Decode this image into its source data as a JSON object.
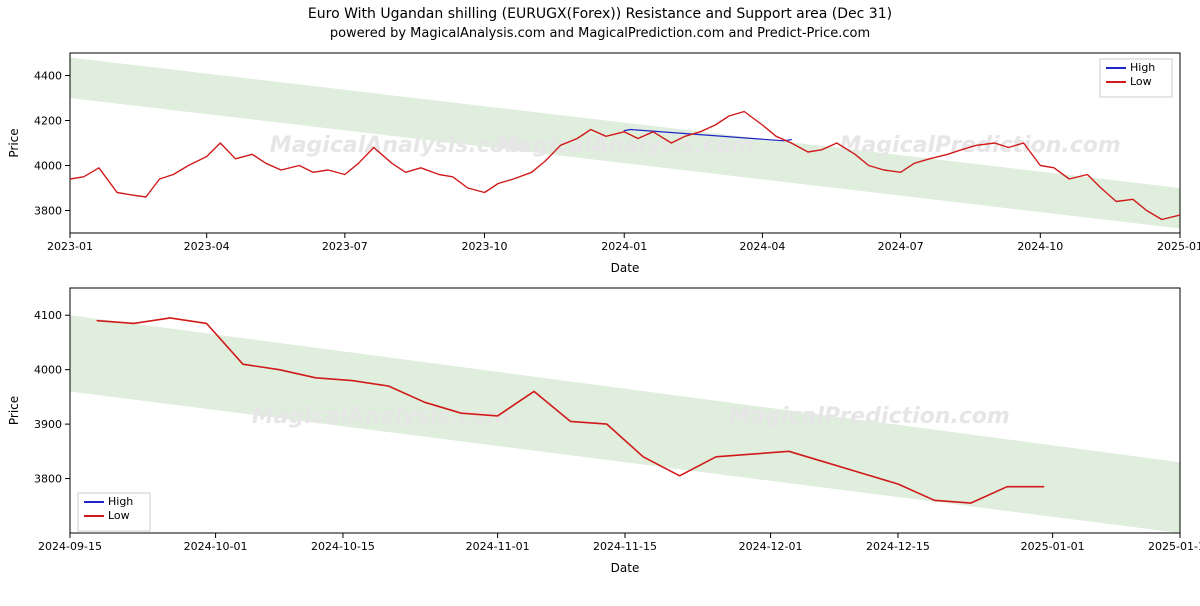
{
  "header": {
    "title": "Euro With Ugandan shilling (EURUGX(Forex)) Resistance and Support area (Dec 31)",
    "subtitle": "powered by MagicalAnalysis.com and MagicalPrediction.com and Predict-Price.com"
  },
  "watermarks": {
    "text1": "MagicalAnalysis.com",
    "text2": "MagicalPrediction.com",
    "color": "#e6e6e6",
    "fontsize": 22
  },
  "legend": {
    "items": [
      {
        "label": "High",
        "color": "#1f24c9"
      },
      {
        "label": "Low",
        "color": "#d11a1a"
      }
    ],
    "box_stroke": "#cccccc",
    "box_fill": "#ffffff"
  },
  "chart_top": {
    "type": "line",
    "xlabel": "Date",
    "ylabel": "Price",
    "background_color": "#ffffff",
    "axis_color": "#000000",
    "label_fontsize": 12,
    "tick_fontsize": 11,
    "ylim": [
      3700,
      4500
    ],
    "yticks": [
      3800,
      4000,
      4200,
      4400
    ],
    "xticks": [
      "2023-01",
      "2023-04",
      "2023-07",
      "2023-10",
      "2024-01",
      "2024-04",
      "2024-07",
      "2024-10",
      "2025-01"
    ],
    "band": {
      "color": "#dfeedd",
      "opacity": 1,
      "top_left_y": 4480,
      "top_right_y": 3900,
      "bottom_left_y": 4300,
      "bottom_right_y": 3720
    },
    "series": {
      "low": {
        "color": "#d11a1a",
        "line_width": 1.4,
        "x": [
          "2023-01-01",
          "2023-01-10",
          "2023-01-20",
          "2023-02-01",
          "2023-02-10",
          "2023-02-20",
          "2023-03-01",
          "2023-03-10",
          "2023-03-20",
          "2023-04-01",
          "2023-04-10",
          "2023-04-20",
          "2023-05-01",
          "2023-05-10",
          "2023-05-20",
          "2023-06-01",
          "2023-06-10",
          "2023-06-20",
          "2023-07-01",
          "2023-07-10",
          "2023-07-20",
          "2023-08-01",
          "2023-08-10",
          "2023-08-20",
          "2023-09-01",
          "2023-09-10",
          "2023-09-20",
          "2023-10-01",
          "2023-10-10",
          "2023-10-20",
          "2023-11-01",
          "2023-11-10",
          "2023-11-20",
          "2023-12-01",
          "2023-12-10",
          "2023-12-20",
          "2024-01-01",
          "2024-01-10",
          "2024-01-20",
          "2024-02-01",
          "2024-02-10",
          "2024-02-20",
          "2024-03-01",
          "2024-03-10",
          "2024-03-20",
          "2024-04-01",
          "2024-04-10",
          "2024-04-20",
          "2024-05-01",
          "2024-05-10",
          "2024-05-20",
          "2024-06-01",
          "2024-06-10",
          "2024-06-20",
          "2024-07-01",
          "2024-07-10",
          "2024-07-20",
          "2024-08-01",
          "2024-08-10",
          "2024-08-20",
          "2024-09-01",
          "2024-09-10",
          "2024-09-20",
          "2024-10-01",
          "2024-10-10",
          "2024-10-20",
          "2024-11-01",
          "2024-11-10",
          "2024-11-20",
          "2024-12-01",
          "2024-12-10",
          "2024-12-20",
          "2025-01-01"
        ],
        "y": [
          3940,
          3950,
          3990,
          3880,
          3870,
          3860,
          3940,
          3960,
          4000,
          4040,
          4100,
          4030,
          4050,
          4010,
          3980,
          4000,
          3970,
          3980,
          3960,
          4010,
          4080,
          4010,
          3970,
          3990,
          3960,
          3950,
          3900,
          3880,
          3920,
          3940,
          3970,
          4020,
          4090,
          4120,
          4160,
          4130,
          4150,
          4120,
          4150,
          4100,
          4130,
          4150,
          4180,
          4220,
          4240,
          4180,
          4130,
          4100,
          4060,
          4070,
          4100,
          4050,
          4000,
          3980,
          3970,
          4010,
          4030,
          4050,
          4070,
          4090,
          4100,
          4080,
          4100,
          4000,
          3990,
          3940,
          3960,
          3900,
          3840,
          3850,
          3800,
          3760,
          3780
        ]
      },
      "high": {
        "color": "#1f24c9",
        "line_width": 1.2,
        "x": [
          "2024-01-01",
          "2024-01-05",
          "2024-04-15",
          "2024-04-20"
        ],
        "y": [
          4155,
          4160,
          4110,
          4115
        ]
      }
    },
    "legend_position": "top-right"
  },
  "chart_bottom": {
    "type": "line",
    "xlabel": "Date",
    "ylabel": "Price",
    "background_color": "#ffffff",
    "axis_color": "#000000",
    "label_fontsize": 12,
    "tick_fontsize": 11,
    "ylim": [
      3700,
      4150
    ],
    "yticks": [
      3800,
      3900,
      4000,
      4100
    ],
    "xticks": [
      "2024-09-15",
      "2024-10-01",
      "2024-10-15",
      "2024-11-01",
      "2024-11-15",
      "2024-12-01",
      "2024-12-15",
      "2025-01-01",
      "2025-01-15"
    ],
    "band": {
      "color": "#dfeedd",
      "opacity": 1,
      "top_left_y": 4100,
      "top_right_y": 3830,
      "bottom_left_y": 3960,
      "bottom_right_y": 3700
    },
    "series": {
      "low": {
        "color": "#d11a1a",
        "line_width": 1.6,
        "x": [
          "2024-09-18",
          "2024-09-22",
          "2024-09-26",
          "2024-09-30",
          "2024-10-04",
          "2024-10-08",
          "2024-10-12",
          "2024-10-16",
          "2024-10-20",
          "2024-10-24",
          "2024-10-28",
          "2024-11-01",
          "2024-11-05",
          "2024-11-09",
          "2024-11-13",
          "2024-11-17",
          "2024-11-21",
          "2024-11-25",
          "2024-11-29",
          "2024-12-03",
          "2024-12-07",
          "2024-12-11",
          "2024-12-15",
          "2024-12-19",
          "2024-12-23",
          "2024-12-27",
          "2024-12-31"
        ],
        "y": [
          4090,
          4085,
          4095,
          4085,
          4010,
          4000,
          3985,
          3980,
          3970,
          3940,
          3920,
          3915,
          3960,
          3905,
          3900,
          3840,
          3805,
          3840,
          3845,
          3850,
          3830,
          3810,
          3790,
          3760,
          3755,
          3785,
          3785
        ]
      },
      "high": {
        "color": "#1f24c9",
        "line_width": 1.4,
        "x": [],
        "y": []
      }
    },
    "legend_position": "bottom-left"
  }
}
